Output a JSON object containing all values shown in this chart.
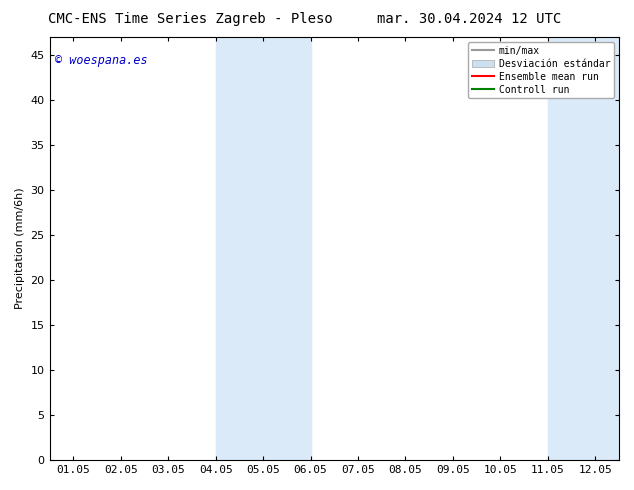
{
  "title_left": "CMC-ENS Time Series Zagreb - Pleso",
  "title_right": "mar. 30.04.2024 12 UTC",
  "ylabel": "Precipitation (mm/6h)",
  "watermark": "© woespana.es",
  "x_tick_labels": [
    "01.05",
    "02.05",
    "03.05",
    "04.05",
    "05.05",
    "06.05",
    "07.05",
    "08.05",
    "09.05",
    "10.05",
    "11.05",
    "12.05"
  ],
  "x_tick_positions": [
    0,
    1,
    2,
    3,
    4,
    5,
    6,
    7,
    8,
    9,
    10,
    11
  ],
  "ylim": [
    0,
    47
  ],
  "yticks": [
    0,
    5,
    10,
    15,
    20,
    25,
    30,
    35,
    40,
    45
  ],
  "shade_regions": [
    {
      "xmin": 3.0,
      "xmax": 5.0,
      "color": "#daeaf8"
    },
    {
      "xmin": 10.0,
      "xmax": 12.0,
      "color": "#daeaf8"
    }
  ],
  "legend_entries": [
    {
      "label": "min/max",
      "color": "#999999",
      "lw": 1.5,
      "ls": "-",
      "type": "line"
    },
    {
      "label": "Desviación estándar",
      "color": "#cce0f0",
      "lw": 8,
      "ls": "-",
      "type": "patch"
    },
    {
      "label": "Ensemble mean run",
      "color": "red",
      "lw": 1.5,
      "ls": "-",
      "type": "line"
    },
    {
      "label": "Controll run",
      "color": "green",
      "lw": 1.5,
      "ls": "-",
      "type": "line"
    }
  ],
  "background_color": "#ffffff",
  "plot_bg_color": "#ffffff",
  "title_fontsize": 10,
  "axis_fontsize": 8,
  "tick_fontsize": 8,
  "watermark_color": "#0000cc",
  "xlim": [
    -0.5,
    11.5
  ]
}
